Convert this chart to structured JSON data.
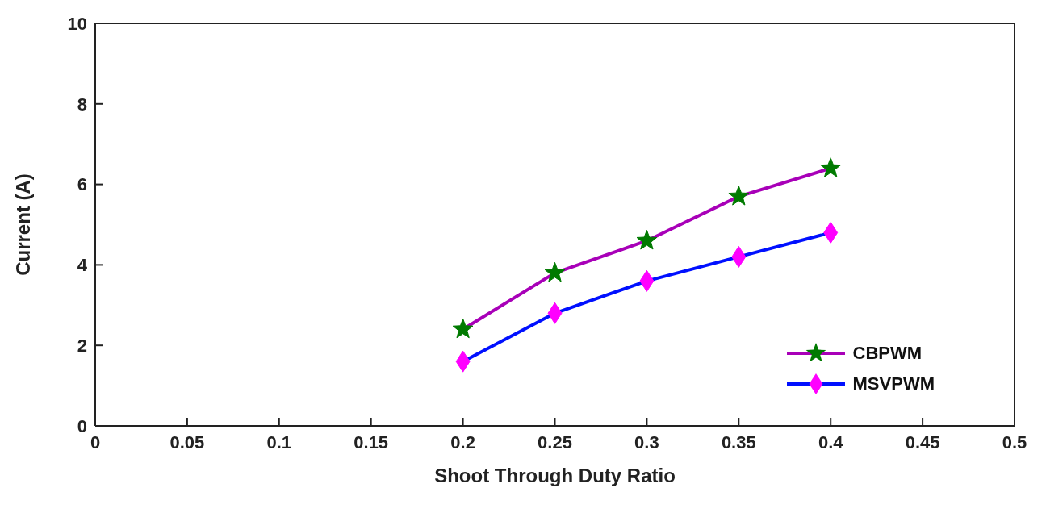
{
  "chart_data": {
    "type": "line",
    "xlabel": "Shoot Through Duty Ratio",
    "ylabel": "Current (A)",
    "x": [
      0.2,
      0.25,
      0.3,
      0.35,
      0.4
    ],
    "series": [
      {
        "name": "CBPWM",
        "color": "#a800b8",
        "marker": "star",
        "colors": [
          "#007a00",
          "#007a00",
          "#007a00",
          "#007a00",
          "#007a00"
        ],
        "values": [
          2.4,
          3.8,
          4.6,
          5.7,
          6.4
        ]
      },
      {
        "name": "MSVPWM",
        "color": "#0010ff",
        "marker": "diamond",
        "colors": [
          "#ff00ff",
          "#ff00ff",
          "#ff00ff",
          "#ff00ff",
          "#ff00ff"
        ],
        "values": [
          1.6,
          2.8,
          3.6,
          4.2,
          4.8
        ]
      }
    ],
    "xlim": [
      0,
      0.5
    ],
    "xticks": [
      0,
      0.05,
      0.1,
      0.15,
      0.2,
      0.25,
      0.3,
      0.35,
      0.4,
      0.45,
      0.5
    ],
    "ylim": [
      0,
      10
    ],
    "yticks": [
      0,
      2,
      4,
      6,
      8,
      10
    ],
    "grid": false,
    "legend": "bottom right",
    "line_style": "solid"
  }
}
